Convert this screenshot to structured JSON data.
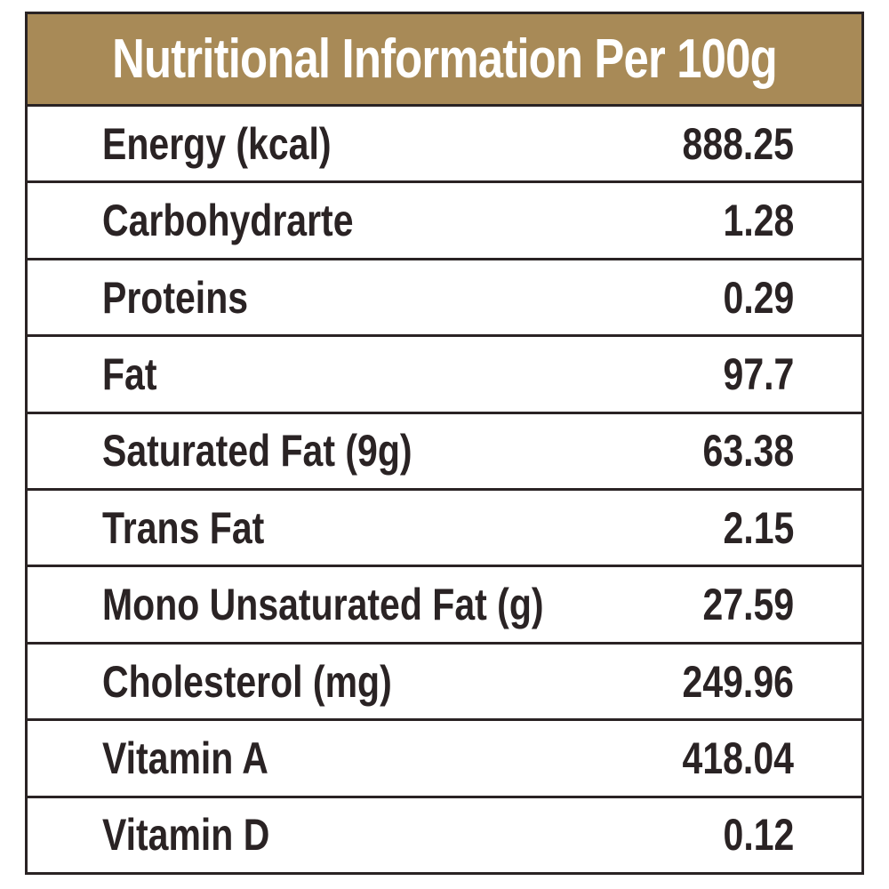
{
  "table": {
    "title": "Nutritional Information Per 100g",
    "rows": [
      {
        "label": "Energy (kcal)",
        "value": "888.25"
      },
      {
        "label": "Carbohydrarte",
        "value": "1.28"
      },
      {
        "label": "Proteins",
        "value": "0.29"
      },
      {
        "label": "Fat",
        "value": "97.7"
      },
      {
        "label": "Saturated Fat (9g)",
        "value": "63.38"
      },
      {
        "label": "Trans Fat",
        "value": "2.15"
      },
      {
        "label": "Mono Unsaturated Fat (g)",
        "value": "27.59"
      },
      {
        "label": "Cholesterol (mg)",
        "value": "249.96"
      },
      {
        "label": "Vitamin A",
        "value": "418.04"
      },
      {
        "label": "Vitamin D",
        "value": "0.12"
      }
    ]
  },
  "colors": {
    "header_background": "#a88a57",
    "header_text": "#ffffff",
    "text": "#2a2324",
    "border": "#2a2324"
  }
}
